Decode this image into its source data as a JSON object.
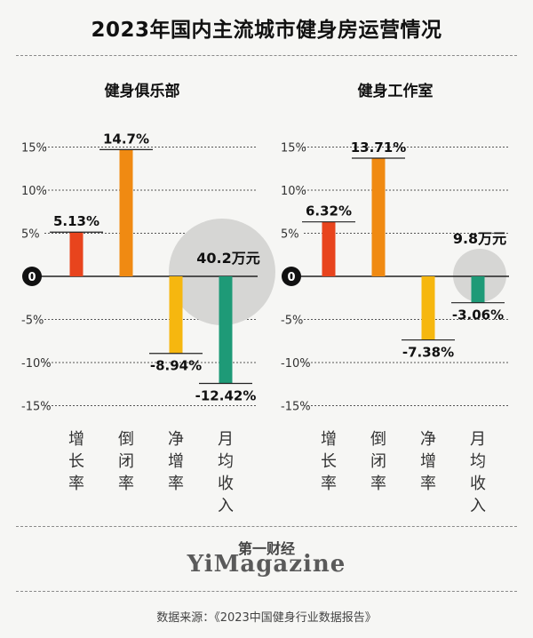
{
  "title": "2023年国内主流城市健身房运营情况",
  "zero_label": "0",
  "chart_data": [
    {
      "type": "bar",
      "subtitle": "健身俱乐部",
      "categories": [
        "增长率",
        "倒闭率",
        "净增率",
        "月均收入"
      ],
      "values": [
        5.13,
        14.7,
        -8.94,
        -12.42
      ],
      "value_labels": [
        "5.13%",
        "14.7%",
        "-8.94%",
        "-12.42%"
      ],
      "colors": [
        "#e8441d",
        "#f08a12",
        "#f6b70f",
        "#1e9a77"
      ],
      "annotation": "40.2万元",
      "ytick_labels": [
        "15%",
        "10%",
        "5%",
        "-5%",
        "-10%",
        "-15%"
      ],
      "yticks": [
        15,
        10,
        5,
        -5,
        -10,
        -15
      ],
      "ylim": [
        -15,
        15
      ]
    },
    {
      "type": "bar",
      "subtitle": "健身工作室",
      "categories": [
        "增长率",
        "倒闭率",
        "净增率",
        "月均收入"
      ],
      "values": [
        6.32,
        13.71,
        -7.38,
        -3.06
      ],
      "value_labels": [
        "6.32%",
        "13.71%",
        "-7.38%",
        "-3.06%"
      ],
      "colors": [
        "#e8441d",
        "#f08a12",
        "#f6b70f",
        "#1e9a77"
      ],
      "annotation": "9.8万元",
      "ytick_labels": [
        "15%",
        "10%",
        "5%",
        "-5%",
        "-10%",
        "-15%"
      ],
      "yticks": [
        15,
        10,
        5,
        -5,
        -10,
        -15
      ],
      "ylim": [
        -15,
        15
      ]
    }
  ],
  "brand_cn": "第一财经",
  "brand_en": "YiMagazine",
  "source": "数据来源：《2023中国健身行业数据报告》"
}
